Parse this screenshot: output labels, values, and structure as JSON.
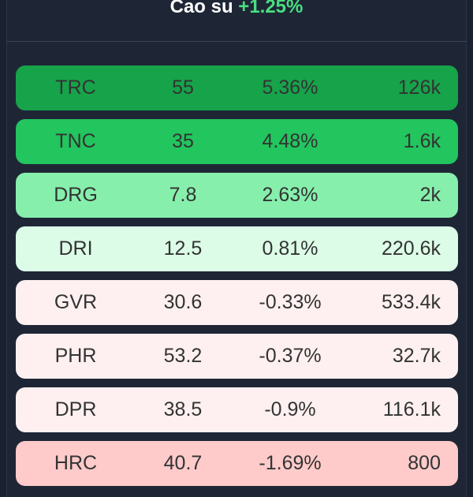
{
  "header": {
    "name": "Cao su",
    "change": "+1.25%"
  },
  "colors": {
    "up_strong": "#16a34a",
    "up_medium": "#22c55e",
    "up_light": "#86efac",
    "up_faint": "#dcfce7",
    "down_faint": "#fef0f0",
    "down_light": "#fecaca"
  },
  "rows": [
    {
      "symbol": "TRC",
      "price": "55",
      "change": "5.36%",
      "volume": "126k",
      "color": "#16a34a"
    },
    {
      "symbol": "TNC",
      "price": "35",
      "change": "4.48%",
      "volume": "1.6k",
      "color": "#22c55e"
    },
    {
      "symbol": "DRG",
      "price": "7.8",
      "change": "2.63%",
      "volume": "2k",
      "color": "#86efac"
    },
    {
      "symbol": "DRI",
      "price": "12.5",
      "change": "0.81%",
      "volume": "220.6k",
      "color": "#dcfce7"
    },
    {
      "symbol": "GVR",
      "price": "30.6",
      "change": "-0.33%",
      "volume": "533.4k",
      "color": "#fef0f0"
    },
    {
      "symbol": "PHR",
      "price": "53.2",
      "change": "-0.37%",
      "volume": "32.7k",
      "color": "#fef0f0"
    },
    {
      "symbol": "DPR",
      "price": "38.5",
      "change": "-0.9%",
      "volume": "116.1k",
      "color": "#fef0f0"
    },
    {
      "symbol": "HRC",
      "price": "40.7",
      "change": "-1.69%",
      "volume": "800",
      "color": "#fecaca"
    }
  ]
}
